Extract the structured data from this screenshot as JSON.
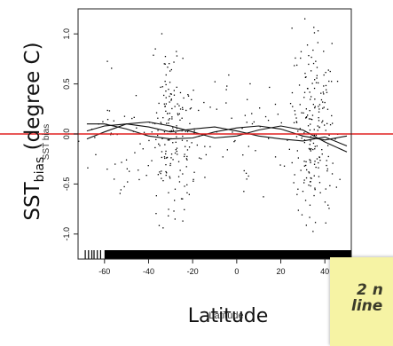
{
  "chart_data": {
    "type": "scatter",
    "title": "",
    "xlabel": "Latitude",
    "ylabel": "SST",
    "ylabel_sub": "bias",
    "ylabel_units": " (degree C)",
    "xlabel_small": "Latitude",
    "ylabel_small": "SST bias",
    "xlim": [
      -72,
      52
    ],
    "ylim": [
      -1.25,
      1.25
    ],
    "xticks": [
      -60,
      -40,
      -20,
      0,
      20,
      40
    ],
    "xtick_labels": [
      "-60",
      "-40",
      "-20",
      "0",
      "20",
      "40"
    ],
    "yticks": [
      -1.0,
      -0.5,
      0.0,
      0.5,
      1.0
    ],
    "ytick_labels": [
      "-1.0",
      "-0.5",
      "0.0",
      "0.5",
      "1.0"
    ],
    "reference_line": {
      "y": 0.0,
      "color": "#e02020"
    },
    "points_color": "#000000",
    "point_clusters": [
      {
        "x_center": -30,
        "x_spread": 5,
        "y_spread": 0.38,
        "count": 170
      },
      {
        "x_center": 35,
        "x_spread": 5,
        "y_spread": 0.42,
        "count": 200
      },
      {
        "x_center": 0,
        "x_spread": 18,
        "y_spread": 0.25,
        "count": 80
      },
      {
        "x_center": -55,
        "x_spread": 8,
        "y_spread": 0.22,
        "count": 40
      }
    ],
    "smoothers": [
      {
        "name": "",
        "x": [
          -68,
          -60,
          -50,
          -40,
          -30,
          -20,
          -10,
          0,
          10,
          20,
          30,
          40,
          50
        ],
        "y": [
          0.03,
          0.08,
          0.1,
          0.07,
          0.02,
          0.05,
          0.07,
          0.03,
          -0.02,
          -0.05,
          -0.07,
          -0.03,
          -0.12
        ]
      },
      {
        "name": "",
        "x": [
          -68,
          -60,
          -50,
          -40,
          -30,
          -20,
          -10,
          0,
          10,
          20,
          30,
          40,
          50
        ],
        "y": [
          0.1,
          0.1,
          0.05,
          -0.02,
          -0.05,
          -0.04,
          0.02,
          0.06,
          0.08,
          0.05,
          -0.02,
          -0.06,
          -0.02
        ]
      },
      {
        "name": "",
        "x": [
          -68,
          -60,
          -50,
          -40,
          -30,
          -20,
          -10,
          0,
          10,
          20,
          30,
          40,
          50
        ],
        "y": [
          -0.05,
          0.02,
          0.1,
          0.12,
          0.08,
          0.02,
          -0.04,
          -0.02,
          0.04,
          0.08,
          0.04,
          -0.08,
          -0.18
        ]
      }
    ],
    "rug": true,
    "grid": false,
    "legend": "none"
  },
  "note": {
    "line1": "2 n",
    "line2": "line",
    "background": "#f6f3a4"
  }
}
